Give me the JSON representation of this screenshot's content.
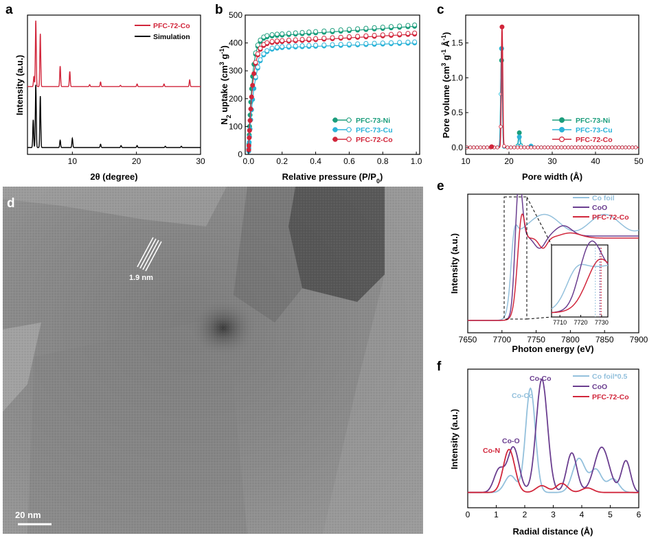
{
  "colors": {
    "red": "#d1263b",
    "black": "#000000",
    "green": "#1b9d7c",
    "cyan": "#2bb3d8",
    "purple": "#6a3d8f",
    "lightblue": "#93c0dc"
  },
  "chart_data": [
    {
      "panel": "a",
      "type": "line",
      "xlabel": "2θ (degree)",
      "ylabel": "Intensity (a.u.)",
      "xlim": [
        3,
        30
      ],
      "xticks": [
        10,
        20,
        30
      ],
      "legend": "top-right",
      "series": [
        {
          "name": "PFC-72-Co",
          "color": "#d1263b",
          "offset": 0.48,
          "peaks": [
            [
              4.3,
              1.0
            ],
            [
              5.0,
              0.8
            ],
            [
              4.0,
              0.15
            ],
            [
              8.1,
              0.31
            ],
            [
              9.6,
              0.23
            ],
            [
              12.7,
              0.03
            ],
            [
              14.4,
              0.07
            ],
            [
              20.1,
              0.04
            ],
            [
              24.3,
              0.04
            ],
            [
              28.3,
              0.1
            ],
            [
              17.5,
              0.02
            ]
          ]
        },
        {
          "name": "Simulation",
          "color": "#000000",
          "offset": 0.0,
          "peaks": [
            [
              4.3,
              0.95
            ],
            [
              5.0,
              0.78
            ],
            [
              3.9,
              0.42
            ],
            [
              8.1,
              0.11
            ],
            [
              10.0,
              0.14
            ],
            [
              14.4,
              0.05
            ],
            [
              17.6,
              0.03
            ],
            [
              20.1,
              0.03
            ],
            [
              24.5,
              0.02
            ],
            [
              27.0,
              0.02
            ]
          ]
        }
      ]
    },
    {
      "panel": "b",
      "type": "scatter",
      "xlabel": "Relative pressure (P/P0)",
      "ylabel": "N2 uptake (cm3 g-1)",
      "xlim": [
        -0.02,
        1.02
      ],
      "ylim": [
        0,
        500
      ],
      "xticks": [
        0.0,
        0.2,
        0.4,
        0.6,
        0.8,
        1.0
      ],
      "yticks": [
        0,
        100,
        200,
        300,
        400,
        500
      ],
      "legend": "lower-right",
      "series": [
        {
          "name": "PFC-73-Ni",
          "color": "#1b9d7c",
          "plateau": 420,
          "end": 460,
          "kink": 0.04
        },
        {
          "name": "PFC-73-Cu",
          "color": "#2bb3d8",
          "plateau": 380,
          "end": 400,
          "kink": 0.06
        },
        {
          "name": "PFC-72-Co",
          "color": "#d1263b",
          "plateau": 398,
          "end": 432,
          "kink": 0.045
        }
      ]
    },
    {
      "panel": "c",
      "type": "line",
      "xlabel": "Pore width (Å)",
      "ylabel": "Pore volume (cm3 g-1 Å-1)",
      "xlim": [
        10,
        50
      ],
      "ylim": [
        -0.1,
        1.9
      ],
      "xticks": [
        10,
        20,
        30,
        40,
        50
      ],
      "yticks": [
        0.0,
        0.5,
        1.0,
        1.5
      ],
      "legend": "lower-right",
      "series": [
        {
          "name": "PFC-73-Ni",
          "color": "#1b9d7c",
          "points": [
            [
              18.3,
              1.25
            ],
            [
              18.3,
              1.42
            ],
            [
              22.4,
              0.21
            ]
          ]
        },
        {
          "name": "PFC-73-Cu",
          "color": "#2bb3d8",
          "points": [
            [
              18.3,
              1.42
            ],
            [
              22.4,
              0.15
            ],
            [
              25.1,
              0.02
            ]
          ]
        },
        {
          "name": "PFC-72-Co",
          "color": "#d1263b",
          "points": [
            [
              18.4,
              1.73
            ],
            [
              16.0,
              0.01
            ]
          ]
        }
      ]
    },
    {
      "panel": "e",
      "type": "line",
      "xlabel": "Photon energy (eV)",
      "ylabel": "Intensity (a.u.)",
      "xlim": [
        7650,
        7900
      ],
      "xticks": [
        7650,
        7700,
        7750,
        7800,
        7850,
        7900
      ],
      "legend": "top-right",
      "inset": {
        "xticks": [
          7710,
          7720,
          7730
        ],
        "xlim": [
          7706,
          7733
        ]
      },
      "series": [
        {
          "name": "Co foil",
          "color": "#93c0dc"
        },
        {
          "name": "CoO",
          "color": "#6a3d8f"
        },
        {
          "name": "PFC-72-Co",
          "color": "#d1263b"
        }
      ]
    },
    {
      "panel": "f",
      "type": "line",
      "xlabel": "Radial distance (Å)",
      "ylabel": "Intensity (a.u.)",
      "xlim": [
        0,
        6
      ],
      "xticks": [
        0,
        1,
        2,
        3,
        4,
        5,
        6
      ],
      "legend": "top-right",
      "series": [
        {
          "name": "Co foil*0.5",
          "color": "#93c0dc",
          "peaks": [
            [
              2.2,
              0.92,
              0.17
            ],
            [
              1.5,
              0.15,
              0.2
            ],
            [
              3.9,
              0.3,
              0.22
            ],
            [
              4.5,
              0.2,
              0.2
            ],
            [
              5.1,
              0.12,
              0.2
            ]
          ]
        },
        {
          "name": "CoO",
          "color": "#6a3d8f",
          "peaks": [
            [
              1.1,
              0.2,
              0.18
            ],
            [
              1.6,
              0.4,
              0.2
            ],
            [
              2.6,
              1.0,
              0.2
            ],
            [
              3.65,
              0.35,
              0.18
            ],
            [
              4.7,
              0.4,
              0.26
            ],
            [
              5.55,
              0.28,
              0.16
            ]
          ]
        },
        {
          "name": "PFC-72-Co",
          "color": "#d1263b",
          "peaks": [
            [
              1.45,
              0.38,
              0.2
            ],
            [
              2.6,
              0.06,
              0.2
            ],
            [
              3.3,
              0.08,
              0.2
            ],
            [
              4.2,
              0.04,
              0.2
            ]
          ]
        }
      ],
      "annotations": [
        "Co-Co",
        "Co-Co",
        "Co-O",
        "Co-N"
      ]
    }
  ],
  "image": {
    "panel": "d",
    "scalebar": "20 nm",
    "lattice": "1.9 nm"
  },
  "labels": {
    "a": "a",
    "b": "b",
    "c": "c",
    "d": "d",
    "e": "e",
    "f": "f"
  }
}
